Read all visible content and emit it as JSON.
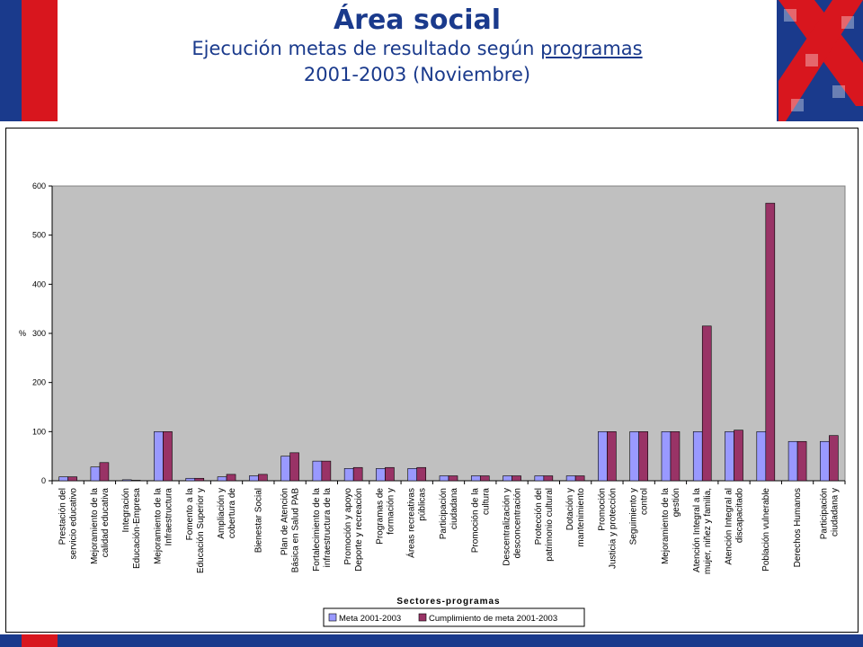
{
  "header": {
    "title": "Área social",
    "subtitle_line1_prefix": "Ejecución metas de resultado según ",
    "subtitle_line1_link": "programas",
    "subtitle_line2": "2001-2003 (Noviembre)"
  },
  "colors": {
    "brand_blue": "#1a3a8c",
    "brand_red": "#d8161e",
    "plot_bg": "#c0c0c0",
    "series_meta": "#9999ff",
    "series_cumplimiento": "#993366"
  },
  "chart_data": {
    "type": "bar",
    "xlabel": "Sectores-programas",
    "ylabel": "%",
    "ylim": [
      0,
      600
    ],
    "yticks": [
      0,
      100,
      200,
      300,
      400,
      500,
      600
    ],
    "grid": false,
    "legend_position": "bottom-center",
    "categories": [
      [
        "Prestación del",
        "servicio educativo"
      ],
      [
        "Mejoramiento de la",
        "calidad educativa"
      ],
      [
        "Integración",
        "Educación-Empresa"
      ],
      [
        "Mejoramiento de la",
        "Infraestructura"
      ],
      [
        "Fomento a la",
        "Educación Superior y"
      ],
      [
        "Ampliación y",
        "cobertura de"
      ],
      [
        "Bienestar Social"
      ],
      [
        "Plan de Atención",
        "Básica en Salud PAB"
      ],
      [
        "Fortalecimiento de la",
        "infraestructura de la"
      ],
      [
        "Promoción y apoyo",
        "Deporte y recreación"
      ],
      [
        "Programas de",
        "formación y"
      ],
      [
        "Áreas recreativas",
        "públicas"
      ],
      [
        "Participación",
        "ciudadana"
      ],
      [
        "Promoción de la",
        "cultura"
      ],
      [
        "Descentralización y",
        "desconcentración"
      ],
      [
        "Protección del",
        "patrimonio cultural"
      ],
      [
        "Dotación y",
        "mantenimiento"
      ],
      [
        "Promoción",
        "Justicia y protección"
      ],
      [
        "Seguimiento y",
        "control"
      ],
      [
        "Mejoramiento de la",
        "gestión"
      ],
      [
        "Atención Integral a la",
        "mujer, niñez y familia,"
      ],
      [
        "Atención Integral al",
        "discapacitado"
      ],
      [
        "Población vulnerable"
      ],
      [
        "Derechos Humanos"
      ],
      [
        "Participación",
        "ciudadana y"
      ]
    ],
    "series": [
      {
        "name": "Meta 2001-2003",
        "values": [
          8,
          28,
          2,
          100,
          5,
          8,
          10,
          50,
          40,
          25,
          25,
          25,
          10,
          10,
          10,
          10,
          10,
          100,
          100,
          100,
          100,
          100,
          100,
          80,
          80
        ]
      },
      {
        "name": "Cumplimiento de meta 2001-2003",
        "values": [
          8,
          37,
          1,
          100,
          5,
          13,
          13,
          57,
          40,
          27,
          27,
          27,
          10,
          10,
          10,
          10,
          10,
          100,
          100,
          100,
          315,
          103,
          565,
          80,
          92
        ]
      }
    ]
  }
}
